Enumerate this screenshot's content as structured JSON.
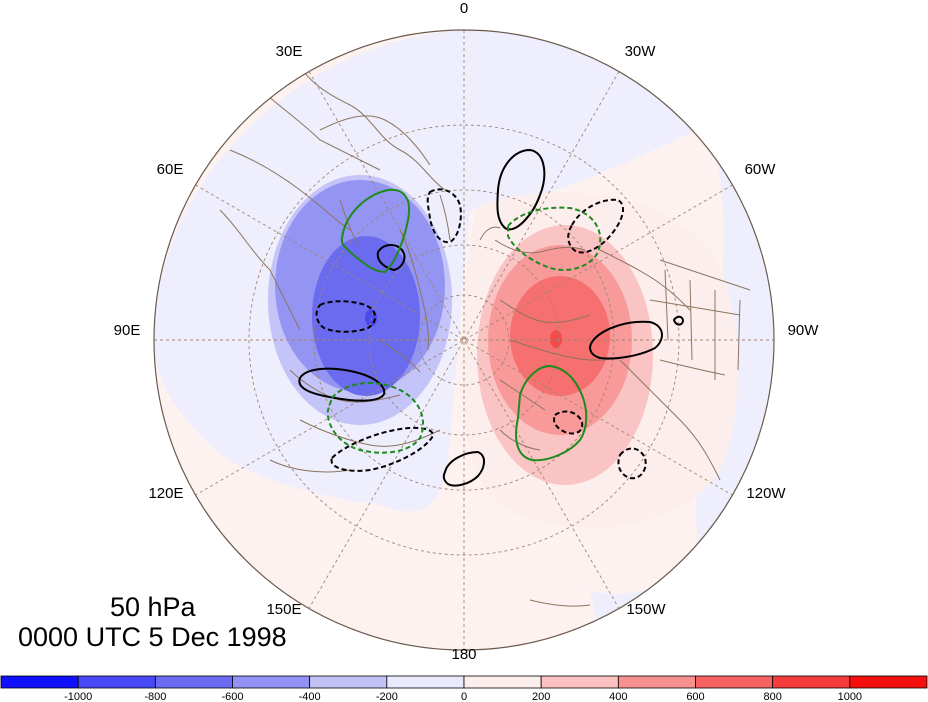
{
  "map": {
    "projection": "north polar stereographic",
    "longitude_labels": [
      {
        "text": "0"
      },
      {
        "text": "30W"
      },
      {
        "text": "60W"
      },
      {
        "text": "90W"
      },
      {
        "text": "120W"
      },
      {
        "text": "150W"
      },
      {
        "text": "180"
      },
      {
        "text": "150E"
      },
      {
        "text": "120E"
      },
      {
        "text": "90E"
      },
      {
        "text": "60E"
      },
      {
        "text": "30E"
      }
    ],
    "shading": "anomaly field: negative over Eurasian side (blue), positive over North American side (red)",
    "contours": "solid black, dashed black, solid green and dashed green isolines",
    "coastlines": true,
    "gridlines": "dashed brown graticule"
  },
  "caption": {
    "level": "50 hPa",
    "time": "0000 UTC 5 Dec 1998"
  },
  "colorbar": {
    "ticks": [
      "-1000",
      "-800",
      "-600",
      "-400",
      "-200",
      "0",
      "200",
      "400",
      "600",
      "800",
      "1000"
    ],
    "colors": [
      "#1010ff",
      "#4848f5",
      "#6a6af2",
      "#9292f4",
      "#c2c2f7",
      "#eaeaff",
      "#fdeeee",
      "#fbc1c1",
      "#f89090",
      "#f56262",
      "#f53c3c",
      "#f51010"
    ]
  },
  "colors": {
    "background": "#ffffff",
    "disk_outline": "#6b5a4e",
    "grid": "#a08570",
    "coast": "#8c7460",
    "contour_black": "#000000",
    "contour_green": "#1e8a1e"
  }
}
